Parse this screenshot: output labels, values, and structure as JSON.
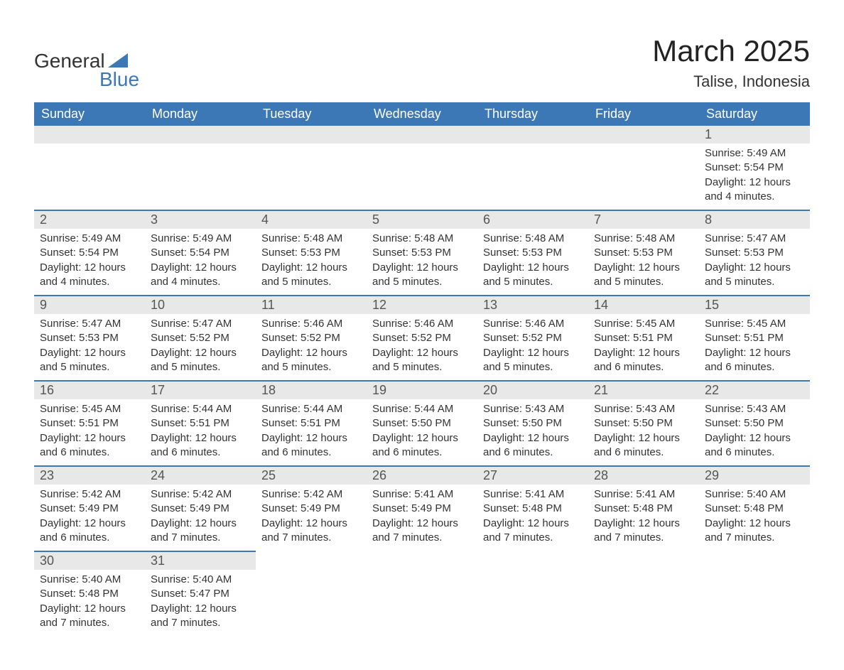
{
  "logo": {
    "word1": "General",
    "word2": "Blue"
  },
  "title": "March 2025",
  "location": "Talise, Indonesia",
  "colors": {
    "header_bg": "#3b78b5",
    "header_text": "#ffffff",
    "daynum_bg": "#e8e8e8",
    "border": "#3b78b5",
    "text": "#333333"
  },
  "weekdays": [
    "Sunday",
    "Monday",
    "Tuesday",
    "Wednesday",
    "Thursday",
    "Friday",
    "Saturday"
  ],
  "weeks": [
    [
      null,
      null,
      null,
      null,
      null,
      null,
      {
        "n": "1",
        "sunrise": "Sunrise: 5:49 AM",
        "sunset": "Sunset: 5:54 PM",
        "daylight": "Daylight: 12 hours and 4 minutes."
      }
    ],
    [
      {
        "n": "2",
        "sunrise": "Sunrise: 5:49 AM",
        "sunset": "Sunset: 5:54 PM",
        "daylight": "Daylight: 12 hours and 4 minutes."
      },
      {
        "n": "3",
        "sunrise": "Sunrise: 5:49 AM",
        "sunset": "Sunset: 5:54 PM",
        "daylight": "Daylight: 12 hours and 4 minutes."
      },
      {
        "n": "4",
        "sunrise": "Sunrise: 5:48 AM",
        "sunset": "Sunset: 5:53 PM",
        "daylight": "Daylight: 12 hours and 5 minutes."
      },
      {
        "n": "5",
        "sunrise": "Sunrise: 5:48 AM",
        "sunset": "Sunset: 5:53 PM",
        "daylight": "Daylight: 12 hours and 5 minutes."
      },
      {
        "n": "6",
        "sunrise": "Sunrise: 5:48 AM",
        "sunset": "Sunset: 5:53 PM",
        "daylight": "Daylight: 12 hours and 5 minutes."
      },
      {
        "n": "7",
        "sunrise": "Sunrise: 5:48 AM",
        "sunset": "Sunset: 5:53 PM",
        "daylight": "Daylight: 12 hours and 5 minutes."
      },
      {
        "n": "8",
        "sunrise": "Sunrise: 5:47 AM",
        "sunset": "Sunset: 5:53 PM",
        "daylight": "Daylight: 12 hours and 5 minutes."
      }
    ],
    [
      {
        "n": "9",
        "sunrise": "Sunrise: 5:47 AM",
        "sunset": "Sunset: 5:53 PM",
        "daylight": "Daylight: 12 hours and 5 minutes."
      },
      {
        "n": "10",
        "sunrise": "Sunrise: 5:47 AM",
        "sunset": "Sunset: 5:52 PM",
        "daylight": "Daylight: 12 hours and 5 minutes."
      },
      {
        "n": "11",
        "sunrise": "Sunrise: 5:46 AM",
        "sunset": "Sunset: 5:52 PM",
        "daylight": "Daylight: 12 hours and 5 minutes."
      },
      {
        "n": "12",
        "sunrise": "Sunrise: 5:46 AM",
        "sunset": "Sunset: 5:52 PM",
        "daylight": "Daylight: 12 hours and 5 minutes."
      },
      {
        "n": "13",
        "sunrise": "Sunrise: 5:46 AM",
        "sunset": "Sunset: 5:52 PM",
        "daylight": "Daylight: 12 hours and 5 minutes."
      },
      {
        "n": "14",
        "sunrise": "Sunrise: 5:45 AM",
        "sunset": "Sunset: 5:51 PM",
        "daylight": "Daylight: 12 hours and 6 minutes."
      },
      {
        "n": "15",
        "sunrise": "Sunrise: 5:45 AM",
        "sunset": "Sunset: 5:51 PM",
        "daylight": "Daylight: 12 hours and 6 minutes."
      }
    ],
    [
      {
        "n": "16",
        "sunrise": "Sunrise: 5:45 AM",
        "sunset": "Sunset: 5:51 PM",
        "daylight": "Daylight: 12 hours and 6 minutes."
      },
      {
        "n": "17",
        "sunrise": "Sunrise: 5:44 AM",
        "sunset": "Sunset: 5:51 PM",
        "daylight": "Daylight: 12 hours and 6 minutes."
      },
      {
        "n": "18",
        "sunrise": "Sunrise: 5:44 AM",
        "sunset": "Sunset: 5:51 PM",
        "daylight": "Daylight: 12 hours and 6 minutes."
      },
      {
        "n": "19",
        "sunrise": "Sunrise: 5:44 AM",
        "sunset": "Sunset: 5:50 PM",
        "daylight": "Daylight: 12 hours and 6 minutes."
      },
      {
        "n": "20",
        "sunrise": "Sunrise: 5:43 AM",
        "sunset": "Sunset: 5:50 PM",
        "daylight": "Daylight: 12 hours and 6 minutes."
      },
      {
        "n": "21",
        "sunrise": "Sunrise: 5:43 AM",
        "sunset": "Sunset: 5:50 PM",
        "daylight": "Daylight: 12 hours and 6 minutes."
      },
      {
        "n": "22",
        "sunrise": "Sunrise: 5:43 AM",
        "sunset": "Sunset: 5:50 PM",
        "daylight": "Daylight: 12 hours and 6 minutes."
      }
    ],
    [
      {
        "n": "23",
        "sunrise": "Sunrise: 5:42 AM",
        "sunset": "Sunset: 5:49 PM",
        "daylight": "Daylight: 12 hours and 6 minutes."
      },
      {
        "n": "24",
        "sunrise": "Sunrise: 5:42 AM",
        "sunset": "Sunset: 5:49 PM",
        "daylight": "Daylight: 12 hours and 7 minutes."
      },
      {
        "n": "25",
        "sunrise": "Sunrise: 5:42 AM",
        "sunset": "Sunset: 5:49 PM",
        "daylight": "Daylight: 12 hours and 7 minutes."
      },
      {
        "n": "26",
        "sunrise": "Sunrise: 5:41 AM",
        "sunset": "Sunset: 5:49 PM",
        "daylight": "Daylight: 12 hours and 7 minutes."
      },
      {
        "n": "27",
        "sunrise": "Sunrise: 5:41 AM",
        "sunset": "Sunset: 5:48 PM",
        "daylight": "Daylight: 12 hours and 7 minutes."
      },
      {
        "n": "28",
        "sunrise": "Sunrise: 5:41 AM",
        "sunset": "Sunset: 5:48 PM",
        "daylight": "Daylight: 12 hours and 7 minutes."
      },
      {
        "n": "29",
        "sunrise": "Sunrise: 5:40 AM",
        "sunset": "Sunset: 5:48 PM",
        "daylight": "Daylight: 12 hours and 7 minutes."
      }
    ],
    [
      {
        "n": "30",
        "sunrise": "Sunrise: 5:40 AM",
        "sunset": "Sunset: 5:48 PM",
        "daylight": "Daylight: 12 hours and 7 minutes."
      },
      {
        "n": "31",
        "sunrise": "Sunrise: 5:40 AM",
        "sunset": "Sunset: 5:47 PM",
        "daylight": "Daylight: 12 hours and 7 minutes."
      },
      null,
      null,
      null,
      null,
      null
    ]
  ]
}
